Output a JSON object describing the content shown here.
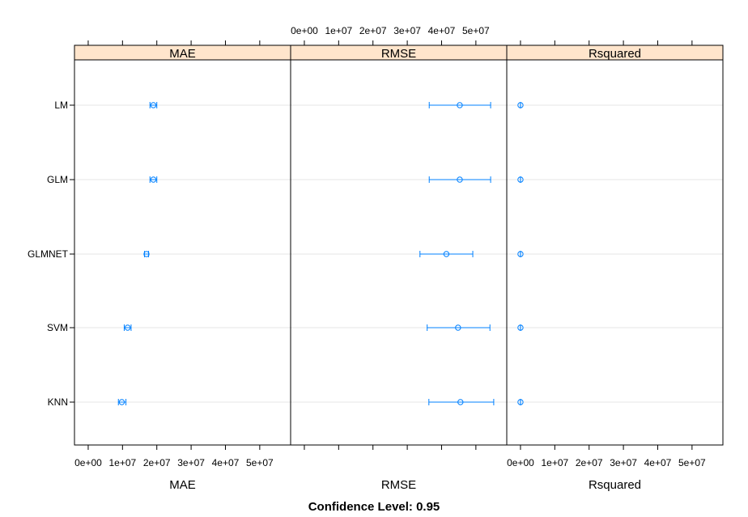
{
  "chart_data": {
    "type": "dotplot",
    "title": "Confidence Level: 0.95",
    "models": [
      "LM",
      "GLM",
      "GLMNET",
      "SVM",
      "KNN"
    ],
    "xlim": [
      -4000000,
      59000000
    ],
    "ticks": [
      0,
      10000000,
      20000000,
      30000000,
      40000000,
      50000000
    ],
    "tick_labels": [
      "0e+00",
      "1e+07",
      "2e+07",
      "3e+07",
      "4e+07",
      "5e+07"
    ],
    "grid": true,
    "colors": {
      "strip": "#ffe5cc",
      "points": "#0080ff",
      "grid": "#e6e6e6"
    },
    "panels": [
      {
        "metric": "MAE",
        "xlabel": "MAE",
        "points": [
          {
            "model": "LM",
            "estimate": 19000000,
            "lower": 18000000,
            "upper": 20000000
          },
          {
            "model": "GLM",
            "estimate": 19000000,
            "lower": 18000000,
            "upper": 20000000
          },
          {
            "model": "GLMNET",
            "estimate": 17000000,
            "lower": 16400000,
            "upper": 17600000
          },
          {
            "model": "SVM",
            "estimate": 11500000,
            "lower": 10500000,
            "upper": 12500000
          },
          {
            "model": "KNN",
            "estimate": 9800000,
            "lower": 8800000,
            "upper": 11000000
          }
        ]
      },
      {
        "metric": "RMSE",
        "xlabel": "RMSE",
        "points": [
          {
            "model": "LM",
            "estimate": 45300000,
            "lower": 36400000,
            "upper": 54300000
          },
          {
            "model": "GLM",
            "estimate": 45300000,
            "lower": 36400000,
            "upper": 54300000
          },
          {
            "model": "GLMNET",
            "estimate": 41400000,
            "lower": 33700000,
            "upper": 49100000
          },
          {
            "model": "SVM",
            "estimate": 44800000,
            "lower": 35800000,
            "upper": 54100000
          },
          {
            "model": "KNN",
            "estimate": 45500000,
            "lower": 36300000,
            "upper": 55200000
          }
        ]
      },
      {
        "metric": "Rsquared",
        "xlabel": "Rsquared",
        "points": [
          {
            "model": "LM",
            "estimate": 0.08,
            "lower": 0.04,
            "upper": 0.12
          },
          {
            "model": "GLM",
            "estimate": 0.08,
            "lower": 0.04,
            "upper": 0.12
          },
          {
            "model": "GLMNET",
            "estimate": 0.08,
            "lower": 0.04,
            "upper": 0.12
          },
          {
            "model": "SVM",
            "estimate": 0.08,
            "lower": 0.04,
            "upper": 0.12
          },
          {
            "model": "KNN",
            "estimate": 0.08,
            "lower": 0.04,
            "upper": 0.12
          }
        ]
      }
    ]
  }
}
